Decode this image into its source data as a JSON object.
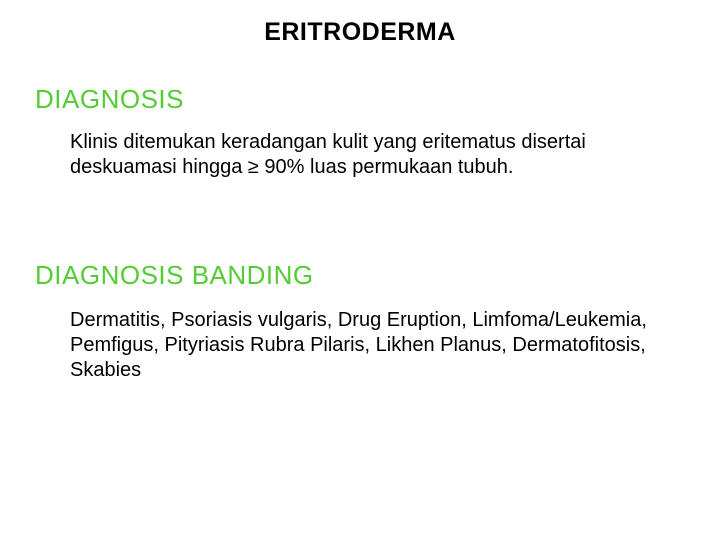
{
  "colors": {
    "heading": "#55cc33",
    "text": "#000000",
    "background": "#ffffff"
  },
  "typography": {
    "title_fontsize": 25,
    "heading_fontsize": 26,
    "body_fontsize": 20,
    "font_family": "Arial"
  },
  "title": "ERITRODERMA",
  "sections": [
    {
      "heading": "DIAGNOSIS",
      "body": "Klinis ditemukan keradangan kulit yang eritematus disertai deskuamasi hingga ≥ 90% luas permukaan tubuh."
    },
    {
      "heading": "DIAGNOSIS BANDING",
      "body": "Dermatitis, Psoriasis vulgaris, Drug Eruption, Limfoma/Leukemia, Pemfigus, Pityriasis Rubra Pilaris, Likhen Planus, Dermatofitosis, Skabies"
    }
  ]
}
